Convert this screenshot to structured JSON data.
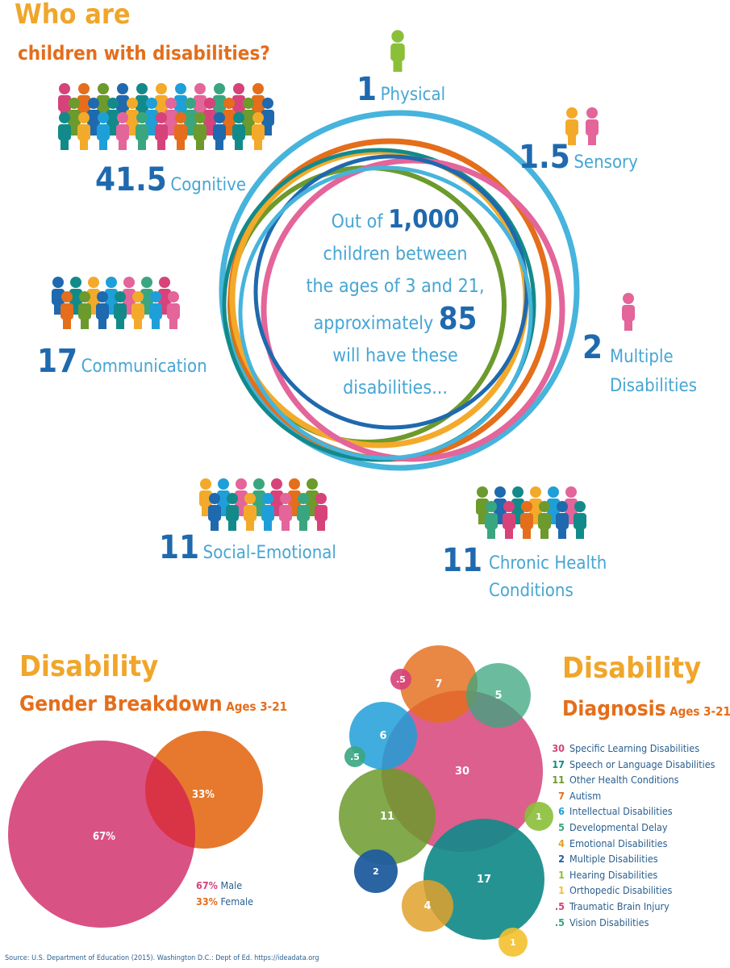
{
  "header": {
    "title_line1": "Who are",
    "title_line2": "children with disabilities?"
  },
  "center": {
    "line1_pre": "Out of",
    "line1_num": "1,000",
    "line2": "children between",
    "line3": "the ages of 3 and 21,",
    "line4_pre": "approximately",
    "line4_num": "85",
    "line5": "will have these",
    "line6": "disabilities..."
  },
  "categories": {
    "physical": {
      "value": "1",
      "label": "Physical"
    },
    "sensory": {
      "value": "1.5",
      "label": "Sensory"
    },
    "cognitive": {
      "value": "41.5",
      "label": "Cognitive"
    },
    "communication": {
      "value": "17",
      "label": "Communication"
    },
    "multiple": {
      "value": "2",
      "label_line1": "Multiple",
      "label_line2": "Disabilities"
    },
    "social": {
      "value": "11",
      "label": "Social-Emotional"
    },
    "chronic": {
      "value": "11",
      "label_line1": "Chronic Health",
      "label_line2": "Conditions"
    }
  },
  "gender": {
    "title": "Disability",
    "subtitle": "Gender Breakdown",
    "ages": "Ages 3-21",
    "male_pct": "67%",
    "female_pct": "33%",
    "legend_male": "Male",
    "legend_female": "Female"
  },
  "diagnosis": {
    "title": "Disability",
    "subtitle": "Diagnosis",
    "ages": "Ages 3-21",
    "legend": [
      {
        "num": "30",
        "label": "Specific Learning Disabilities",
        "color": "#d6437a"
      },
      {
        "num": "17",
        "label": "Speech or Language Disabilities",
        "color": "#138a8a"
      },
      {
        "num": "11",
        "label": "Other Health Conditions",
        "color": "#6c9a2c"
      },
      {
        "num": "7",
        "label": "Autism",
        "color": "#e46e1b"
      },
      {
        "num": "6",
        "label": "Intellectual Disabilities",
        "color": "#1f9fd8"
      },
      {
        "num": "5",
        "label": "Developmental Delay",
        "color": "#3aa67f"
      },
      {
        "num": "4",
        "label": "Emotional Disabilities",
        "color": "#e0a12c"
      },
      {
        "num": "2",
        "label": "Multiple Disabilities",
        "color": "#1f5c9e"
      },
      {
        "num": "1",
        "label": "Hearing Disabilities",
        "color": "#8bbf3a"
      },
      {
        "num": "1",
        "label": "Orthopedic Disabilities",
        "color": "#f3c02d"
      },
      {
        "num": ".5",
        "label": "Traumatic Brain Injury",
        "color": "#d6437a"
      },
      {
        "num": ".5",
        "label": "Vision Disabilities",
        "color": "#3aa67f"
      }
    ],
    "bubbles": [
      "30",
      "17",
      "11",
      "7",
      "6",
      "5",
      "4",
      "2",
      "1",
      "1",
      ".5",
      ".5"
    ]
  },
  "colors": {
    "orange": "#f0a62b",
    "dark_orange": "#e46e1b",
    "blue": "#1f69ae",
    "light_blue": "#46a6d4",
    "pink": "#d6437a",
    "teal": "#138a8a",
    "green": "#6c9a2c"
  },
  "source": "Source: U.S. Department of Education (2015). Washington D.C.: Dept of Ed. https://ideadata.org"
}
